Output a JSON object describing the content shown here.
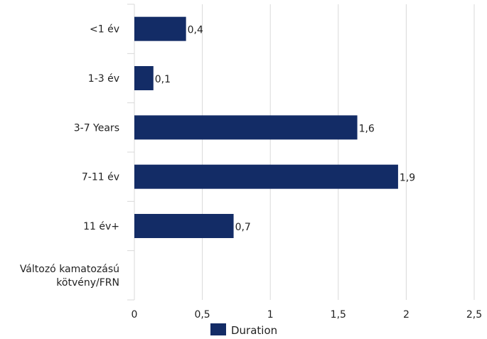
{
  "chart_data": {
    "type": "bar",
    "orientation": "horizontal",
    "categories": [
      [
        "<1 év"
      ],
      [
        "1-3 év"
      ],
      [
        "3-7 Years"
      ],
      [
        "7-11 év"
      ],
      [
        "11 év+"
      ],
      [
        "Változó kamatozású",
        "kötvény/FRN"
      ]
    ],
    "series": [
      {
        "name": "Duration",
        "values": [
          0.38,
          0.14,
          1.64,
          1.94,
          0.73,
          null
        ],
        "data_labels": [
          "0,4",
          "0,1",
          "1,6",
          "1,9",
          "0,7",
          ""
        ]
      }
    ],
    "x_ticks": [
      {
        "value": 0,
        "label": "0"
      },
      {
        "value": 0.5,
        "label": "0,5"
      },
      {
        "value": 1,
        "label": "1"
      },
      {
        "value": 1.5,
        "label": "1,5"
      },
      {
        "value": 2,
        "label": "2"
      },
      {
        "value": 2.5,
        "label": "2,5"
      }
    ],
    "xlim": [
      0,
      2.5
    ],
    "grid": "vertical",
    "legend_position": "bottom",
    "colors": {
      "bar": "#132c66",
      "grid": "#d9d9d9",
      "text": "#222222"
    }
  }
}
